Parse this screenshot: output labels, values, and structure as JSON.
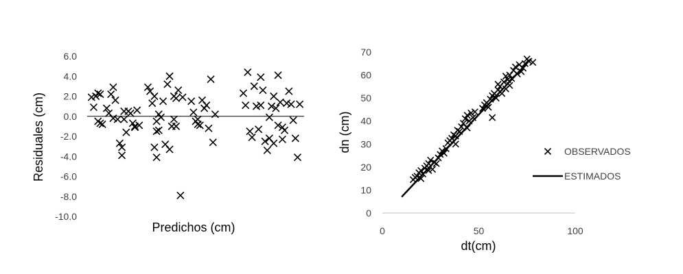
{
  "chart_data": [
    {
      "type": "scatter",
      "title": "",
      "xlabel": "Predichos (cm)",
      "ylabel": "Residuales (cm)",
      "ylim": [
        -10,
        6
      ],
      "xlim": [
        0,
        100
      ],
      "yticks": [
        "6.0",
        "4.0",
        "2.0",
        "0.0",
        "-2.0",
        "-4.0",
        "-6.0",
        "-8.0",
        "-10.0"
      ],
      "ytick_values": [
        6,
        4,
        2,
        0,
        -2,
        -4,
        -6,
        -8,
        -10
      ],
      "x_tick_labels_shown": false,
      "zero_line": true,
      "grid": false,
      "marker": "x",
      "marker_color": "#000000",
      "series": [
        {
          "x": [
            2,
            3,
            5,
            6,
            4,
            5,
            6,
            7,
            9,
            10,
            11,
            12,
            13,
            12,
            14,
            15,
            16,
            17,
            17,
            16,
            18,
            19,
            20,
            21,
            22,
            22,
            23,
            24,
            28,
            29,
            30,
            31,
            32,
            32,
            33,
            31,
            32,
            33,
            34,
            35,
            36,
            37,
            38,
            38,
            39,
            40,
            40,
            41,
            41,
            42,
            43,
            44,
            48,
            49,
            50,
            51,
            51,
            52,
            53,
            54,
            55,
            56,
            57,
            58,
            59,
            72,
            73,
            74,
            75,
            76,
            77,
            78,
            79,
            80,
            80,
            81,
            82,
            83,
            84,
            84,
            85,
            86,
            86,
            87,
            88,
            88,
            89,
            90,
            90,
            91,
            92,
            93,
            94,
            95,
            96,
            97,
            98
          ],
          "y": [
            1.9,
            0.9,
            2.3,
            2.2,
            2.0,
            -0.5,
            -0.7,
            -0.8,
            0.8,
            0.3,
            2.2,
            2.9,
            1.6,
            -0.2,
            -0.3,
            -2.7,
            -3.1,
            -0.3,
            0.5,
            -3.9,
            -1.6,
            0.5,
            0.3,
            -0.7,
            -1.0,
            -1.1,
            0.6,
            -0.9,
            2.9,
            2.5,
            1.3,
            2.0,
            -0.5,
            -1.5,
            -1.4,
            -3.1,
            -4.1,
            0.2,
            -0.1,
            1.5,
            -2.8,
            3.2,
            -3.3,
            4.0,
            -1.0,
            2.0,
            -0.3,
            1.8,
            -1.0,
            2.6,
            -7.9,
            1.9,
            1.5,
            0.4,
            -0.5,
            -0.8,
            -0.3,
            -0.9,
            1.6,
            0.8,
            1.1,
            -1.2,
            3.7,
            -2.6,
            0.2,
            2.3,
            1.1,
            4.4,
            -1.5,
            -2.1,
            3.0,
            1.0,
            -1.3,
            1.1,
            3.9,
            2.6,
            -2.5,
            -3.4,
            -2.2,
            -0.1,
            1.0,
            2.0,
            -2.7,
            0.8,
            -0.9,
            4.1,
            1.4,
            -1.1,
            -2.3,
            -1.4,
            1.3,
            2.5,
            1.2,
            -0.4,
            -2.2,
            -4.1,
            1.2
          ]
        }
      ]
    },
    {
      "type": "scatter",
      "title": "",
      "xlabel": "dt(cm)",
      "ylabel": "dn (cm)",
      "xlim": [
        0,
        100
      ],
      "ylim": [
        0,
        70
      ],
      "xticks": [
        "0",
        "50",
        "100"
      ],
      "xtick_values": [
        0,
        50,
        100
      ],
      "yticks": [
        "70",
        "60",
        "50",
        "40",
        "30",
        "20",
        "10",
        "0"
      ],
      "ytick_values": [
        70,
        60,
        50,
        40,
        30,
        20,
        10,
        0
      ],
      "grid": false,
      "legend": {
        "position": "right",
        "entries": [
          "OBSERVADOS",
          "ESTIMADOS"
        ]
      },
      "series": [
        {
          "name": "OBSERVADOS",
          "marker": "x",
          "color": "#000000",
          "x": [
            16,
            17,
            18,
            19,
            20,
            20,
            21,
            22,
            23,
            24,
            24,
            25,
            26,
            27,
            28,
            29,
            30,
            31,
            32,
            33,
            34,
            35,
            36,
            37,
            38,
            38,
            39,
            40,
            41,
            42,
            43,
            44,
            44,
            45,
            46,
            47,
            48,
            52,
            53,
            54,
            55,
            56,
            57,
            57,
            58,
            59,
            60,
            60,
            61,
            62,
            63,
            64,
            64,
            65,
            66,
            66,
            67,
            68,
            69,
            70,
            71,
            72,
            73,
            74,
            75,
            76,
            78
          ],
          "y": [
            14.5,
            15.5,
            16.0,
            17.5,
            15.0,
            18.5,
            17.0,
            19.5,
            20.5,
            21.5,
            18.5,
            23.0,
            19.0,
            22.0,
            21.5,
            24.0,
            25.5,
            27.0,
            26.0,
            28.0,
            30.5,
            31.5,
            32.5,
            34.0,
            33.5,
            30.0,
            36.0,
            35.5,
            37.5,
            39.0,
            41.0,
            42.5,
            37.0,
            40.0,
            43.5,
            41.5,
            44.0,
            45.5,
            47.0,
            48.0,
            46.0,
            49.5,
            51.0,
            41.5,
            52.0,
            50.0,
            53.5,
            56.0,
            55.0,
            52.0,
            57.0,
            59.5,
            54.0,
            58.0,
            60.0,
            55.5,
            58.5,
            62.0,
            63.5,
            60.5,
            64.5,
            61.5,
            63.0,
            65.0,
            67.0,
            66.0,
            65.5
          ]
        },
        {
          "name": "ESTIMADOS",
          "type": "line",
          "color": "#000000",
          "x": [
            10,
            77
          ],
          "y": [
            7,
            67
          ]
        }
      ]
    }
  ]
}
